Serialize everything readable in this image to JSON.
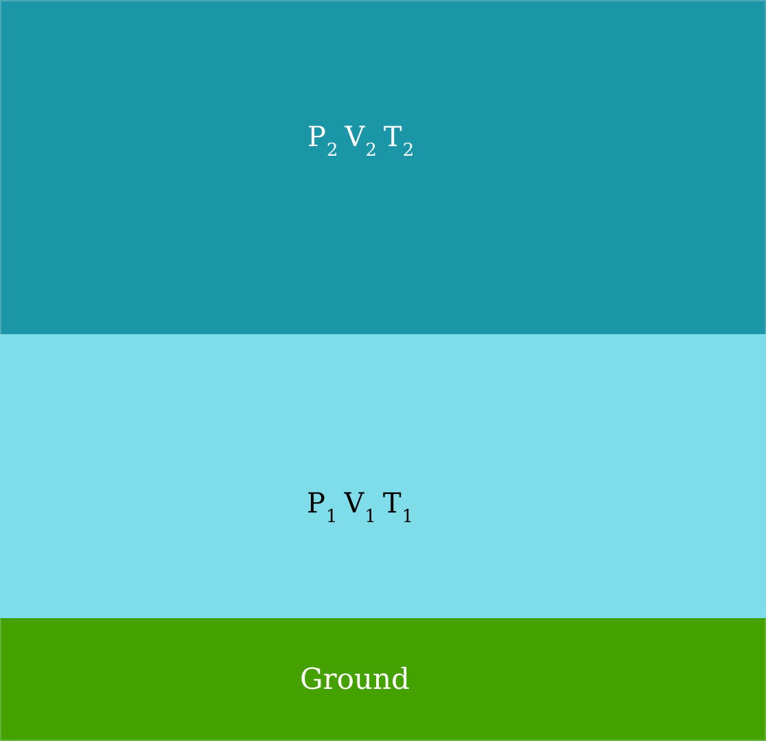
{
  "layers": {
    "upper": {
      "vars": [
        {
          "symbol": "P",
          "sub": "2"
        },
        {
          "symbol": "V",
          "sub": "2"
        },
        {
          "symbol": "T",
          "sub": "2"
        }
      ]
    },
    "lower": {
      "vars": [
        {
          "symbol": "P",
          "sub": "1"
        },
        {
          "symbol": "V",
          "sub": "1"
        },
        {
          "symbol": "T",
          "sub": "1"
        }
      ]
    },
    "ground": {
      "label": "Ground"
    }
  },
  "colors": {
    "upper_fill": "#1a96a6",
    "upper_text": "#ffffff",
    "lower_fill": "#7fdde9",
    "lower_text": "#000000",
    "ground_fill": "#45a100",
    "ground_text": "#ffffff"
  }
}
